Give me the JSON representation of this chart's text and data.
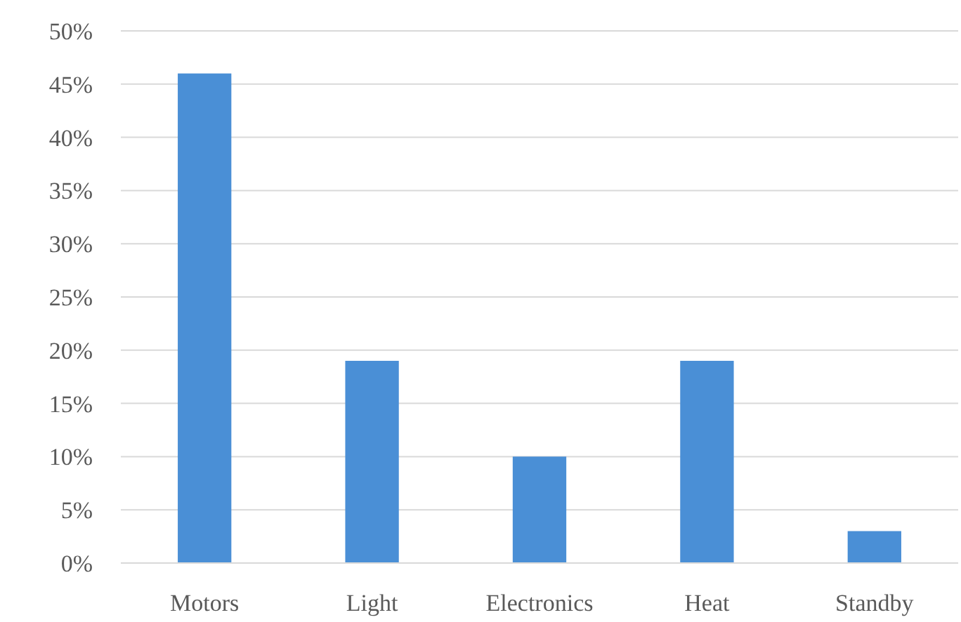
{
  "chart_data": {
    "type": "bar",
    "categories": [
      "Motors",
      "Light",
      "Electronics",
      "Heat",
      "Standby"
    ],
    "values": [
      46,
      19,
      10,
      19,
      3
    ],
    "color": "#4a8fd6",
    "ylim": [
      0,
      50
    ],
    "yticks": [
      {
        "value": 0,
        "label": "0%"
      },
      {
        "value": 5,
        "label": "5%"
      },
      {
        "value": 10,
        "label": "10%"
      },
      {
        "value": 15,
        "label": "15%"
      },
      {
        "value": 20,
        "label": "20%"
      },
      {
        "value": 25,
        "label": "25%"
      },
      {
        "value": 30,
        "label": "30%"
      },
      {
        "value": 35,
        "label": "35%"
      },
      {
        "value": 40,
        "label": "40%"
      },
      {
        "value": 45,
        "label": "45%"
      },
      {
        "value": 50,
        "label": "50%"
      }
    ],
    "grid": "y"
  }
}
